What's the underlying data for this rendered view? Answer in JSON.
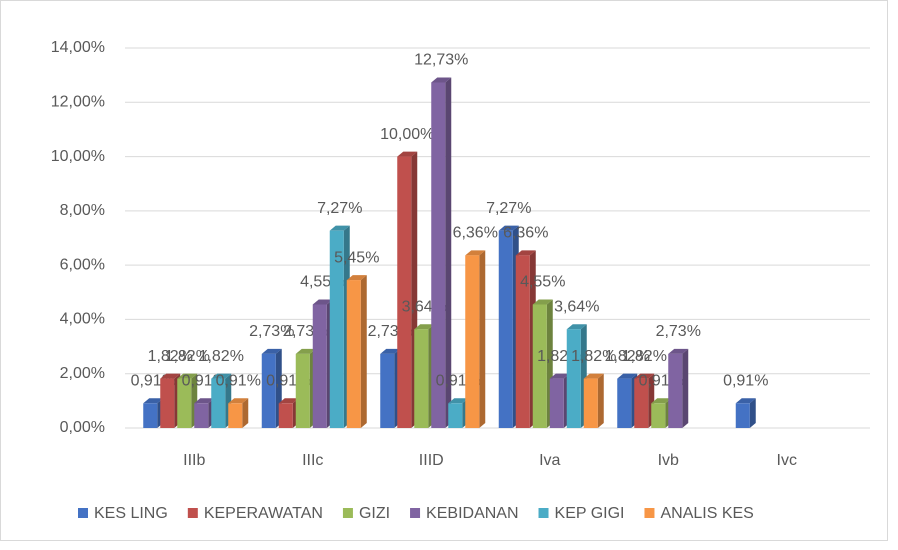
{
  "chart_data": {
    "type": "bar",
    "categories": [
      "IIIb",
      "IIIc",
      "IIID",
      "Iva",
      "Ivb",
      "Ivc"
    ],
    "series": [
      {
        "name": "KES LING",
        "color": "#4472c4",
        "values": [
          0.91,
          2.73,
          2.73,
          7.27,
          1.82,
          0.91
        ],
        "value_labels": [
          "0,91%",
          "2,73%",
          "2,73%",
          "7,27%",
          "1,82%",
          "0,91%"
        ]
      },
      {
        "name": "KEPERAWATAN",
        "color": "#c0504d",
        "values": [
          1.82,
          0.91,
          10.0,
          6.36,
          1.82,
          null
        ],
        "value_labels": [
          "1,82%",
          "0,91%",
          "10,00%",
          "6,36%",
          "1,82%",
          null
        ]
      },
      {
        "name": "GIZI",
        "color": "#9bbb59",
        "values": [
          1.82,
          2.73,
          3.64,
          4.55,
          0.91,
          null
        ],
        "value_labels": [
          "1,82%",
          "2,73%",
          "3,64%",
          "4,55%",
          "0,91%",
          null
        ]
      },
      {
        "name": "KEBIDANAN",
        "color": "#8064a2",
        "values": [
          0.91,
          4.55,
          12.73,
          1.82,
          2.73,
          null
        ],
        "value_labels": [
          "0,91%",
          "4,55%",
          "12,73%",
          "1,82%",
          "2,73%",
          null
        ]
      },
      {
        "name": "KEP GIGI",
        "color": "#4bacc6",
        "values": [
          1.82,
          7.27,
          0.91,
          3.64,
          null,
          null
        ],
        "value_labels": [
          "1,82%",
          "7,27%",
          "0,91%",
          "3,64%",
          null,
          null
        ]
      },
      {
        "name": "ANALIS KES",
        "color": "#f79646",
        "values": [
          0.91,
          5.45,
          6.36,
          1.82,
          null,
          null
        ],
        "value_labels": [
          "0,91%",
          "5,45%",
          "6,36%",
          "1,82%",
          null,
          null
        ]
      }
    ],
    "ylim": [
      0,
      14
    ],
    "yticks": [
      {
        "value": 0,
        "label": "0,00%"
      },
      {
        "value": 2,
        "label": "2,00%"
      },
      {
        "value": 4,
        "label": "4,00%"
      },
      {
        "value": 6,
        "label": "6,00%"
      },
      {
        "value": 8,
        "label": "8,00%"
      },
      {
        "value": 10,
        "label": "10,00%"
      },
      {
        "value": 12,
        "label": "12,00%"
      },
      {
        "value": 14,
        "label": "14,00%"
      }
    ],
    "grid": true,
    "legend": "bottom"
  }
}
